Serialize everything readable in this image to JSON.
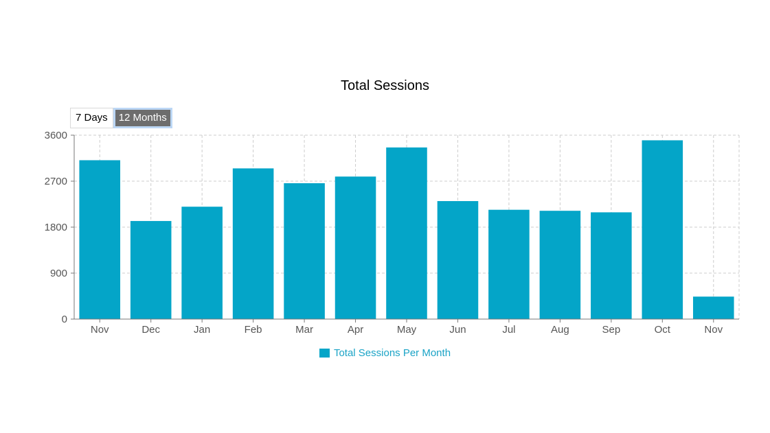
{
  "chart_data": {
    "type": "bar",
    "title": "Total Sessions",
    "categories": [
      "Nov",
      "Dec",
      "Jan",
      "Feb",
      "Mar",
      "Apr",
      "May",
      "Jun",
      "Jul",
      "Aug",
      "Sep",
      "Oct",
      "Nov"
    ],
    "series": [
      {
        "name": "Total Sessions Per Month",
        "values": [
          3110,
          1920,
          2200,
          2950,
          2660,
          2790,
          3360,
          2310,
          2140,
          2120,
          2090,
          3500,
          440
        ],
        "color": "#04a5c8"
      }
    ],
    "yticks": [
      "0",
      "900",
      "1800",
      "2700",
      "3600"
    ],
    "ylim": [
      0,
      3600
    ],
    "grid": true,
    "legend_position": "bottom"
  },
  "controls": {
    "range_options": [
      {
        "label": "7 Days",
        "active": false
      },
      {
        "label": "12 Months",
        "active": true
      }
    ]
  },
  "colors": {
    "bar": "#04a5c8",
    "legend_text": "#1aa3c6",
    "grid": "#cccccc",
    "axis": "#777777"
  }
}
